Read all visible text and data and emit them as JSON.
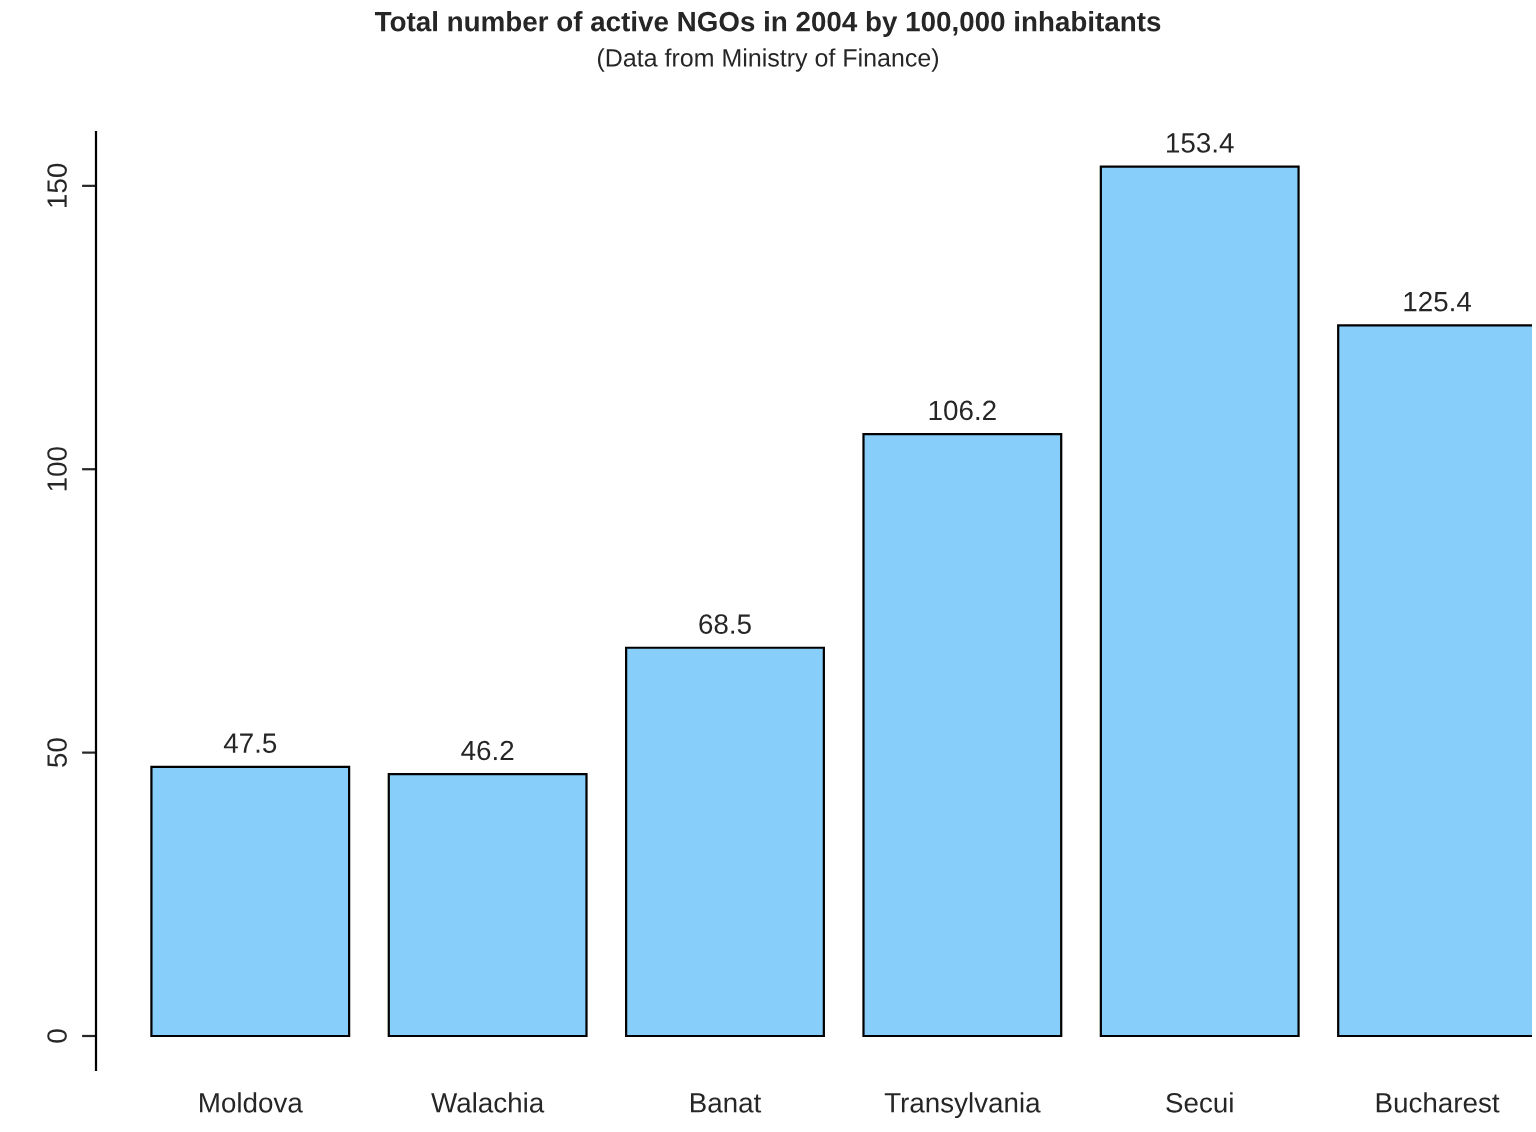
{
  "chart_data": {
    "type": "bar",
    "title": "Total number of active NGOs in 2004 by 100,000 inhabitants",
    "subtitle": "(Data from Ministry of Finance)",
    "categories": [
      "Moldova",
      "Walachia",
      "Banat",
      "Transylvania",
      "Secui",
      "Bucharest"
    ],
    "values": [
      47.5,
      46.2,
      68.5,
      106.2,
      153.4,
      125.4
    ],
    "color": "#87cefa",
    "ylim": [
      -6,
      159.5
    ],
    "yticks": [
      0,
      50,
      100,
      150
    ],
    "grid": false,
    "data_labels": true
  }
}
